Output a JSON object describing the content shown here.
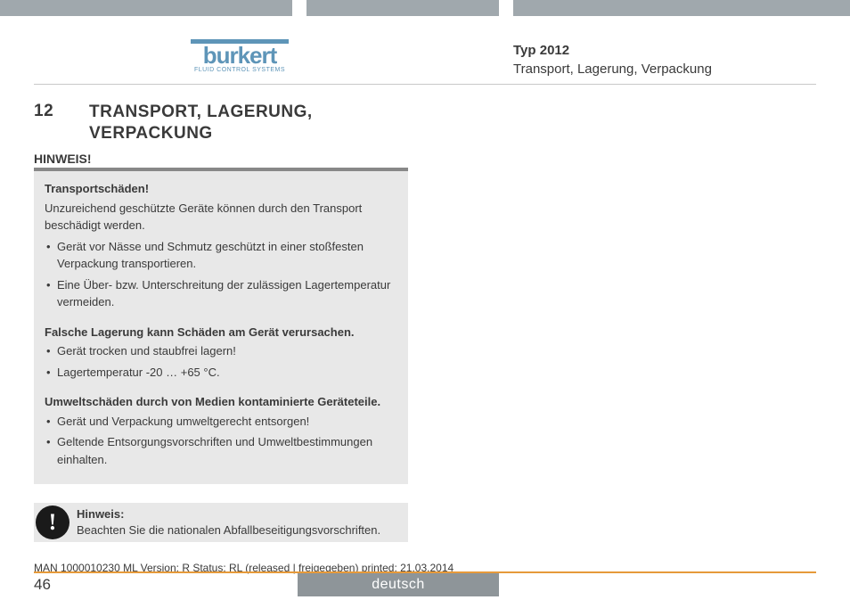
{
  "colors": {
    "header_bar": "#a0a8ad",
    "logo": "#5e95b8",
    "divider": "#c8c8c8",
    "hinweis_bg": "#e8e8e8",
    "hinweis_border": "#888888",
    "note_icon_bg": "#1a1a1a",
    "footer_accent": "#e69a3a",
    "lang_tab_bg": "#8e9599",
    "text": "#3a3a3a"
  },
  "logo": {
    "brand": "burkert",
    "tagline": "FLUID CONTROL SYSTEMS"
  },
  "header_right": {
    "type_label": "Typ 2012",
    "section_label": "Transport, Lagerung, Verpackung"
  },
  "heading": {
    "number": "12",
    "title_line1": "TRANSPORT, LAGERUNG,",
    "title_line2": "VERPACKUNG"
  },
  "hinweis_label": "HINWEIS!",
  "box": {
    "s1_title": "Transportschäden!",
    "s1_text": "Unzureichend geschützte Geräte können durch den Transport beschädigt werden.",
    "s1_items": [
      "Gerät vor Nässe und Schmutz geschützt in einer stoßfesten Verpackung transportieren.",
      "Eine Über- bzw. Unterschreitung der zulässigen Lagertemperatur vermeiden."
    ],
    "s2_title": "Falsche Lagerung kann Schäden am Gerät verursachen.",
    "s2_items": [
      "Gerät trocken und staubfrei lagern!",
      "Lagertemperatur -20 … +65 °C."
    ],
    "s3_title": "Umweltschäden durch von Medien kontaminierte Geräteteile.",
    "s3_items": [
      "Gerät und Verpackung umweltgerecht entsorgen!",
      "Geltende Entsorgungsvorschriften und Umweltbestimmungen einhalten."
    ]
  },
  "note": {
    "icon_char": "!",
    "title": "Hinweis:",
    "text": "Beachten Sie die nationalen Abfallbeseitigungsvorschriften."
  },
  "footer": {
    "doc_line": "MAN  1000010230  ML  Version: R Status: RL (released | freigegeben)  printed: 21.03.2014",
    "page_number": "46",
    "language": "deutsch"
  }
}
